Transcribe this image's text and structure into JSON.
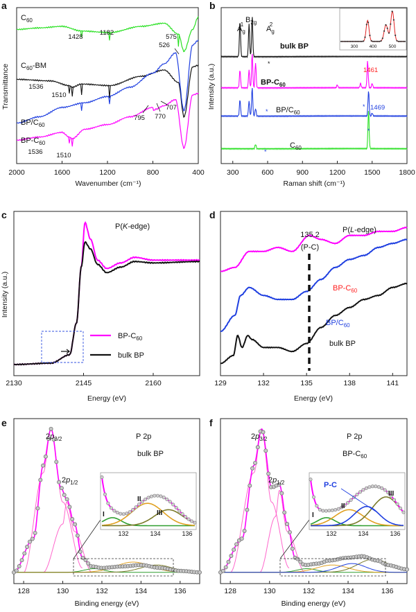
{
  "panels": {
    "a": {
      "letter": "a",
      "xlabel": "Wavenumber (cm⁻¹)",
      "ylabel": "Transmittance",
      "xticks": [
        "2000",
        "1600",
        "1200",
        "800",
        "400"
      ],
      "series": [
        {
          "name": "C60",
          "label_main": "C",
          "label_sub": "60",
          "label_suffix": "",
          "color": "#29e022"
        },
        {
          "name": "C60-BM",
          "label_main": "C",
          "label_sub": "60",
          "label_suffix": "-BM",
          "color": "#111111"
        },
        {
          "name": "BP/C60",
          "label_main": "BP/C",
          "label_sub": "60",
          "label_suffix": "",
          "color": "#1f3fe0"
        },
        {
          "name": "BP-C60",
          "label_main": "BP-C",
          "label_sub": "60",
          "label_suffix": "",
          "color": "#ff00ff"
        }
      ],
      "peaks": [
        "1428",
        "1182",
        "575",
        "526",
        "1536",
        "1510",
        "795",
        "770",
        "707",
        "1536",
        "1510"
      ]
    },
    "b": {
      "letter": "b",
      "xlabel": "Raman shift (cm⁻¹)",
      "ylabel": "Intensity (a.u.)",
      "xticks": [
        "300",
        "600",
        "900",
        "1200",
        "1500",
        "1800"
      ],
      "modes": [
        {
          "main": "A",
          "sub": "g",
          "sup": "1"
        },
        {
          "main": "B",
          "sub": "2g",
          "sup": ""
        },
        {
          "main": "A",
          "sub": "g",
          "sup": "2"
        }
      ],
      "series": [
        {
          "name": "bulk BP",
          "label": "bulk BP",
          "color": "#111111"
        },
        {
          "name": "BP-C60",
          "label_main": "BP-C",
          "label_sub": "60",
          "color": "#ff00ff"
        },
        {
          "name": "BP/C60",
          "label_main": "BP/C",
          "label_sub": "60",
          "color": "#1f3fe0"
        },
        {
          "name": "C60",
          "label_main": "C",
          "label_sub": "60",
          "color": "#29e022"
        }
      ],
      "peak_red": "1461",
      "peak_blue": "1469",
      "inset_ticks": [
        "300",
        "400",
        "500"
      ]
    },
    "c": {
      "letter": "c",
      "xlabel": "Energy (eV)",
      "ylabel": "Intensity (a.u.)",
      "xticks": [
        "2130",
        "2145",
        "2160"
      ],
      "edge_pre": "P(",
      "edge_italic": "K",
      "edge_post": "-edge)",
      "legend": [
        {
          "main": "BP-C",
          "sub": "60",
          "color": "#ff00ff"
        },
        {
          "main": "bulk BP",
          "sub": "",
          "color": "#111111"
        }
      ]
    },
    "d": {
      "letter": "d",
      "xlabel": "Energy (eV)",
      "xticks": [
        "129",
        "132",
        "135",
        "138",
        "141"
      ],
      "edge_pre": "P(",
      "edge_italic": "L",
      "edge_post": "-edge)",
      "marker_value": "135.2",
      "marker_label": "(P-C)",
      "series": [
        {
          "main": "BP-C",
          "sub": "60",
          "color": "#ff00ff",
          "text_color": "#ff2020"
        },
        {
          "main": "BP/C",
          "sub": "60",
          "color": "#1f3fe0",
          "text_color": "#1f3fe0"
        },
        {
          "main": "bulk BP",
          "sub": "",
          "color": "#111111",
          "text_color": "#111111"
        }
      ]
    },
    "e": {
      "letter": "e",
      "xlabel": "Binding energy (eV)",
      "xticks": [
        "128",
        "130",
        "132",
        "134",
        "136"
      ],
      "title": "P 2p",
      "sample": "bulk BP",
      "peak1": {
        "pre": "2",
        "it": "p",
        "sub": "3/2"
      },
      "peak2": {
        "pre": "2",
        "it": "p",
        "sub": "1/2"
      },
      "inset_ticks": [
        "132",
        "134",
        "136"
      ],
      "components": [
        "I",
        "II",
        "III"
      ]
    },
    "f": {
      "letter": "f",
      "xlabel": "Binding energy (eV)",
      "xticks": [
        "128",
        "130",
        "132",
        "134",
        "136"
      ],
      "title": "P 2p",
      "sample_main": "BP-C",
      "sample_sub": "60",
      "peak1": {
        "pre": "2",
        "it": "p",
        "sub": "3/2"
      },
      "peak2": {
        "pre": "2",
        "it": "p",
        "sub": "1/2"
      },
      "inset_ticks": [
        "132",
        "134",
        "136"
      ],
      "components": [
        "I",
        "II",
        "III"
      ],
      "pc_label": "P-C"
    }
  },
  "chart_data": [
    {
      "type": "line",
      "panel": "a",
      "xlabel": "Wavenumber (cm⁻¹)",
      "ylabel": "Transmittance",
      "xlim": [
        2000,
        400
      ],
      "series": [
        {
          "name": "C60",
          "x": [
            2000,
            1800,
            1600,
            1428,
            1182,
            900,
            700,
            575,
            526,
            450,
            400
          ],
          "y": [
            8.6,
            8.7,
            8.8,
            8.5,
            8.4,
            8.8,
            9.0,
            8.3,
            7.2,
            8.6,
            9.4
          ]
        },
        {
          "name": "C60-BM",
          "x": [
            2000,
            1700,
            1536,
            1510,
            1428,
            1182,
            900,
            700,
            575,
            526,
            450,
            400
          ],
          "y": [
            5.4,
            5.3,
            5.0,
            4.9,
            5.1,
            5.0,
            5.6,
            6.0,
            5.2,
            3.0,
            6.2,
            6.3
          ]
        },
        {
          "name": "BP/C60",
          "x": [
            2000,
            1800,
            1600,
            1400,
            1200,
            1000,
            800,
            700,
            600,
            526,
            450,
            400
          ],
          "y": [
            2.6,
            3.0,
            3.6,
            3.9,
            4.3,
            4.9,
            5.8,
            6.4,
            7.1,
            3.4,
            7.6,
            7.9
          ]
        },
        {
          "name": "BP-C60",
          "x": [
            2000,
            1800,
            1600,
            1536,
            1510,
            1400,
            1200,
            1000,
            800,
            795,
            770,
            707,
            600,
            526,
            450,
            400
          ],
          "y": [
            1.5,
            1.7,
            2.0,
            1.7,
            1.6,
            2.2,
            2.5,
            3.0,
            3.6,
            3.4,
            3.5,
            3.7,
            4.1,
            1.0,
            4.4,
            4.5
          ]
        }
      ],
      "annotations": [
        "1428",
        "1182",
        "575",
        "526",
        "1536",
        "1510",
        "795",
        "770",
        "707"
      ]
    },
    {
      "type": "line",
      "panel": "b",
      "xlabel": "Raman shift (cm⁻¹)",
      "ylabel": "Intensity (a.u.)",
      "xlim": [
        200,
        1800
      ],
      "series": [
        {
          "name": "bulk BP",
          "x": [
            200,
            362,
            440,
            467,
            600,
            900,
            1200,
            1500,
            1800
          ],
          "y": [
            7.2,
            9.6,
            9.4,
            9.9,
            7.2,
            7.2,
            7.2,
            7.2,
            7.2
          ]
        },
        {
          "name": "BP-C60",
          "x": [
            200,
            362,
            440,
            467,
            496,
            600,
            900,
            1200,
            1400,
            1461,
            1500,
            1800
          ],
          "y": [
            5.1,
            6.3,
            6.3,
            7.4,
            6.8,
            5.2,
            5.2,
            5.3,
            5.4,
            6.9,
            5.4,
            5.3
          ]
        },
        {
          "name": "BP/C60",
          "x": [
            200,
            362,
            440,
            467,
            496,
            900,
            1200,
            1469,
            1500,
            1800
          ],
          "y": [
            3.2,
            4.3,
            4.2,
            5.1,
            3.7,
            3.3,
            3.3,
            4.9,
            3.4,
            3.3
          ]
        },
        {
          "name": "C60",
          "x": [
            200,
            496,
            900,
            1200,
            1469,
            1500,
            1800
          ],
          "y": [
            1.0,
            1.3,
            1.0,
            1.0,
            3.6,
            1.0,
            1.0
          ]
        }
      ],
      "annotations": [
        "1461",
        "1469"
      ]
    },
    {
      "type": "line",
      "panel": "c",
      "xlabel": "Energy (eV)",
      "ylabel": "Intensity (a.u.)",
      "xlim": [
        2130,
        2170
      ],
      "series": [
        {
          "name": "BP-C60",
          "x": [
            2130,
            2138,
            2142,
            2143.5,
            2144.5,
            2145.3,
            2146.5,
            2148,
            2150,
            2153,
            2156,
            2160,
            2170
          ],
          "y": [
            0.05,
            0.06,
            0.12,
            0.35,
            0.75,
            1.07,
            0.95,
            0.8,
            0.74,
            0.78,
            0.82,
            0.8,
            0.8
          ]
        },
        {
          "name": "bulk BP",
          "x": [
            2130,
            2138,
            2142,
            2143.5,
            2144.5,
            2145.3,
            2146.5,
            2148,
            2150,
            2153,
            2156,
            2160,
            2170
          ],
          "y": [
            0.05,
            0.06,
            0.12,
            0.35,
            0.75,
            0.93,
            0.88,
            0.77,
            0.71,
            0.75,
            0.79,
            0.78,
            0.79
          ]
        }
      ]
    },
    {
      "type": "line",
      "panel": "d",
      "xlabel": "Energy (eV)",
      "xlim": [
        129,
        142
      ],
      "series": [
        {
          "name": "BP-C60",
          "x": [
            129,
            130,
            131,
            132,
            133,
            134,
            135.2,
            136,
            137,
            138,
            139,
            140,
            141,
            142
          ],
          "y": [
            2.5,
            2.6,
            3.0,
            3.0,
            3.1,
            3.0,
            3.4,
            3.3,
            3.2,
            3.4,
            3.4,
            3.5,
            3.5,
            3.6
          ]
        },
        {
          "name": "BP/C60",
          "x": [
            129,
            130,
            130.4,
            131,
            132,
            133,
            134,
            135,
            136,
            137,
            138,
            139,
            140,
            141,
            142
          ],
          "y": [
            1.0,
            1.4,
            1.9,
            2.1,
            1.9,
            1.8,
            1.8,
            2.0,
            2.3,
            2.6,
            2.8,
            2.9,
            3.1,
            3.2,
            3.3
          ]
        },
        {
          "name": "bulk BP",
          "x": [
            129,
            129.9,
            130.2,
            130.5,
            130.9,
            131.2,
            132,
            133,
            134,
            135,
            136,
            137,
            138,
            139,
            140,
            141,
            142
          ],
          "y": [
            0.2,
            0.4,
            0.9,
            0.6,
            0.9,
            0.8,
            0.6,
            0.6,
            0.5,
            0.7,
            1.1,
            1.4,
            1.6,
            1.8,
            1.9,
            2.1,
            2.2
          ]
        }
      ],
      "annotations": [
        "135.2",
        "(P-C)"
      ]
    },
    {
      "type": "line",
      "panel": "e",
      "xlabel": "Binding energy (eV)",
      "xlim": [
        127.5,
        137
      ],
      "series": [
        {
          "name": "2p3/2",
          "x": [
            128,
            129,
            129.4,
            130,
            131
          ],
          "y": [
            0.02,
            0.7,
            1.0,
            0.5,
            0.05
          ]
        },
        {
          "name": "2p1/2",
          "x": [
            129,
            130,
            130.2,
            130.6,
            131.5
          ],
          "y": [
            0.02,
            0.35,
            0.5,
            0.3,
            0.02
          ]
        },
        {
          "name": "envelope",
          "x": [
            127.5,
            128.5,
            129,
            129.4,
            129.9,
            130.2,
            130.6,
            131,
            131.5,
            132,
            133,
            134,
            135,
            136,
            137
          ],
          "y": [
            0.02,
            0.25,
            0.75,
            1.0,
            0.6,
            0.52,
            0.35,
            0.12,
            0.06,
            0.05,
            0.06,
            0.07,
            0.05,
            0.03,
            0.02
          ]
        }
      ],
      "annotations": [
        "I",
        "II",
        "III"
      ]
    },
    {
      "type": "line",
      "panel": "f",
      "xlabel": "Binding energy (eV)",
      "xlim": [
        127.5,
        137
      ],
      "series": [
        {
          "name": "2p3/2",
          "x": [
            128,
            129.2,
            129.6,
            130.1,
            131
          ],
          "y": [
            0.02,
            0.7,
            1.0,
            0.5,
            0.05
          ]
        },
        {
          "name": "2p1/2",
          "x": [
            129.5,
            130.3,
            130.5,
            130.9,
            131.8
          ],
          "y": [
            0.02,
            0.4,
            0.58,
            0.3,
            0.02
          ]
        },
        {
          "name": "envelope",
          "x": [
            127.5,
            128.6,
            129.2,
            129.6,
            130.1,
            130.5,
            130.9,
            131.3,
            131.8,
            132.5,
            133,
            134,
            134.7,
            135.5,
            136,
            137
          ],
          "y": [
            0.02,
            0.25,
            0.75,
            1.0,
            0.6,
            0.62,
            0.35,
            0.12,
            0.07,
            0.08,
            0.1,
            0.12,
            0.13,
            0.1,
            0.07,
            0.04
          ]
        }
      ],
      "annotations": [
        "I",
        "II",
        "III",
        "P-C"
      ]
    }
  ]
}
